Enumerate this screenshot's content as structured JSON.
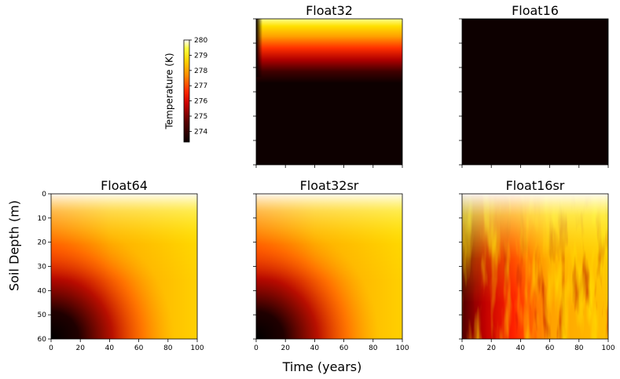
{
  "figure": {
    "xlabel": "Time (years)",
    "ylabel": "Soil Depth (m)"
  },
  "colorbar": {
    "label": "Temperature (K)",
    "ticks": [
      "274",
      "275",
      "276",
      "277",
      "278",
      "279",
      "280"
    ],
    "range": [
      273.3,
      280
    ],
    "colormap": "hot"
  },
  "chart_data": [
    {
      "type": "heatmap",
      "title": "Float32",
      "x_range": [
        0,
        100
      ],
      "y_range": [
        0,
        60
      ],
      "xticks": [
        0,
        20,
        40,
        60,
        80,
        100
      ],
      "yticks": [
        0,
        10,
        20,
        30,
        40,
        50,
        60
      ],
      "show_tick_labels": false,
      "description_of_field": "only top ~25 m warm; rest cold"
    },
    {
      "type": "heatmap",
      "title": "Float16",
      "x_range": [
        0,
        100
      ],
      "y_range": [
        0,
        60
      ],
      "xticks": [
        0,
        20,
        40,
        60,
        80,
        100
      ],
      "yticks": [
        0,
        10,
        20,
        30,
        40,
        50,
        60
      ],
      "show_tick_labels": false,
      "description_of_field": "uniformly cold"
    },
    {
      "type": "heatmap",
      "title": "Float64",
      "x_range": [
        0,
        100
      ],
      "y_range": [
        0,
        60
      ],
      "xticks": [
        0,
        20,
        40,
        60,
        80,
        100
      ],
      "yticks": [
        0,
        10,
        20,
        30,
        40,
        50,
        60
      ],
      "xtick_labels": [
        "0",
        "20",
        "40",
        "60",
        "80",
        "100"
      ],
      "ytick_labels": [
        "0",
        "10",
        "20",
        "30",
        "40",
        "50",
        "60"
      ]
    },
    {
      "type": "heatmap",
      "title": "Float32sr",
      "x_range": [
        0,
        100
      ],
      "y_range": [
        0,
        60
      ],
      "xticks": [
        0,
        20,
        40,
        60,
        80,
        100
      ],
      "yticks": [
        0,
        10,
        20,
        30,
        40,
        50,
        60
      ],
      "xtick_labels": [
        "0",
        "20",
        "40",
        "60",
        "80",
        "100"
      ]
    },
    {
      "type": "heatmap",
      "title": "Float16sr",
      "x_range": [
        0,
        100
      ],
      "y_range": [
        0,
        60
      ],
      "xticks": [
        0,
        20,
        40,
        60,
        80,
        100
      ],
      "yticks": [
        0,
        10,
        20,
        30,
        40,
        50,
        60
      ],
      "xtick_labels": [
        "0",
        "20",
        "40",
        "60",
        "80",
        "100"
      ]
    }
  ]
}
